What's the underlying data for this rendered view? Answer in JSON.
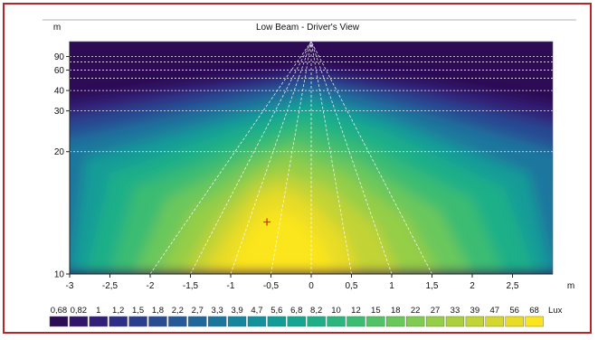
{
  "chart_data": {
    "type": "heatmap",
    "title": "Low Beam - Driver's View",
    "x_unit": "m",
    "y_unit": "m",
    "x_ticks": [
      "-3",
      "-2,5",
      "-2",
      "-1,5",
      "-1",
      "-0,5",
      "0",
      "0,5",
      "1",
      "1,5",
      "2",
      "2,5"
    ],
    "x_tick_values": [
      -3,
      -2.5,
      -2,
      -1.5,
      -1,
      -0.5,
      0,
      0.5,
      1,
      1.5,
      2,
      2.5
    ],
    "xlim": [
      -3,
      3
    ],
    "y_ticks": [
      "90",
      "60",
      "40",
      "30",
      "20",
      "10"
    ],
    "y_tick_values": [
      90,
      60,
      40,
      30,
      20,
      10
    ],
    "y_scale": "reciprocal",
    "ylim": [
      10,
      200
    ],
    "grid": true,
    "lane_line_x_at_10m": [
      -2,
      -1.5,
      -1,
      -0.5,
      0,
      0.5,
      1,
      1.5
    ],
    "marker": {
      "x": -0.55,
      "y": 12.7,
      "color": "#e11d2a"
    },
    "legend": {
      "placement": "bottom",
      "unit": "Lux",
      "levels": [
        "0,68",
        "0,82",
        "1",
        "1,2",
        "1,5",
        "1,8",
        "2,2",
        "2,7",
        "3,3",
        "3,9",
        "4,7",
        "5,6",
        "6,8",
        "8,2",
        "10",
        "12",
        "15",
        "18",
        "22",
        "27",
        "33",
        "39",
        "47",
        "56",
        "68"
      ],
      "colors": [
        "#2d0b55",
        "#32166a",
        "#30207a",
        "#2c2f87",
        "#293e8f",
        "#284c94",
        "#245a98",
        "#20689b",
        "#1b769e",
        "#16859e",
        "#13919c",
        "#129c98",
        "#14a692",
        "#1eaf88",
        "#2ab67d",
        "#3bbc72",
        "#52c266",
        "#6ac75c",
        "#80cb51",
        "#95ce47",
        "#abd03d",
        "#c2d335",
        "#d6d72e",
        "#e8dc27",
        "#fbe51e"
      ]
    }
  }
}
